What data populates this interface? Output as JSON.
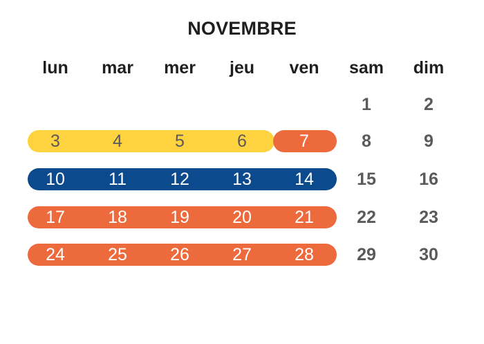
{
  "month": "NOVEMBRE",
  "weekdays": [
    "lun",
    "mar",
    "mer",
    "jeu",
    "ven",
    "sam",
    "dim"
  ],
  "days": {
    "d1": "1",
    "d2": "2",
    "d3": "3",
    "d4": "4",
    "d5": "5",
    "d6": "6",
    "d7": "7",
    "d8": "8",
    "d9": "9",
    "d10": "10",
    "d11": "11",
    "d12": "12",
    "d13": "13",
    "d14": "14",
    "d15": "15",
    "d16": "16",
    "d17": "17",
    "d18": "18",
    "d19": "19",
    "d20": "20",
    "d21": "21",
    "d22": "22",
    "d23": "23",
    "d24": "24",
    "d25": "25",
    "d26": "26",
    "d27": "27",
    "d28": "28",
    "d29": "29",
    "d30": "30"
  },
  "colors": {
    "yellow": "#ffd23f",
    "orange": "#ec6a3b",
    "blue": "#0c4a8e",
    "weekend_text": "#5a5a5a",
    "heading_text": "#1f1f1f"
  }
}
